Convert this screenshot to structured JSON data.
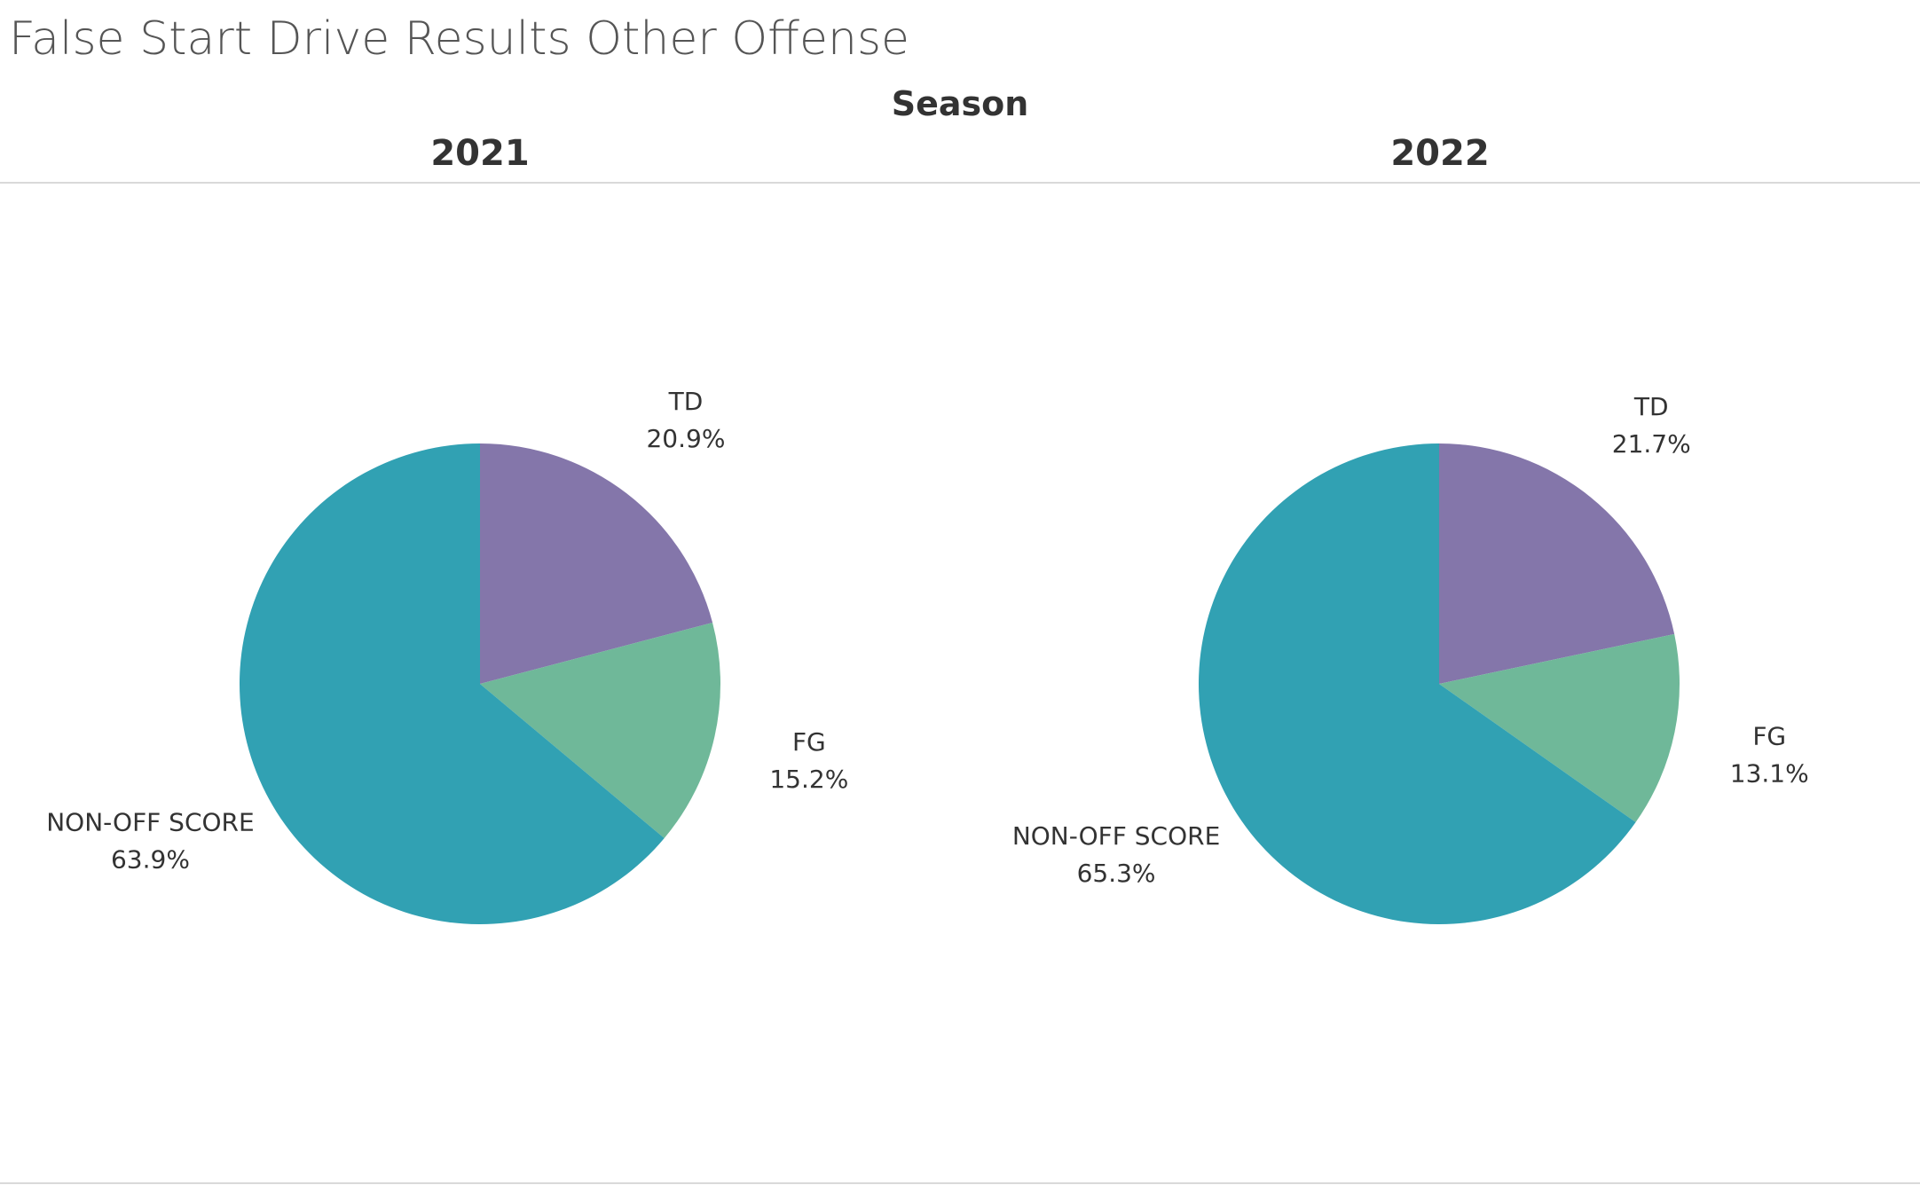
{
  "title": "False Start Drive Results Other Offense",
  "facet_label": "Season",
  "chart_data": [
    {
      "type": "pie",
      "panel": "2021",
      "slices": [
        {
          "label": "TD",
          "value": 20.9,
          "display": "20.9%",
          "color": "#8476aa"
        },
        {
          "label": "FG",
          "value": 15.2,
          "display": "15.2%",
          "color": "#6fb899"
        },
        {
          "label": "NON-OFF SCORE",
          "value": 63.9,
          "display": "63.9%",
          "color": "#31a1b3"
        }
      ]
    },
    {
      "type": "pie",
      "panel": "2022",
      "slices": [
        {
          "label": "TD",
          "value": 21.7,
          "display": "21.7%",
          "color": "#8476aa"
        },
        {
          "label": "FG",
          "value": 13.1,
          "display": "13.1%",
          "color": "#6fb899"
        },
        {
          "label": "NON-OFF SCORE",
          "value": 65.3,
          "display": "65.3%",
          "color": "#31a1b3"
        }
      ]
    }
  ]
}
